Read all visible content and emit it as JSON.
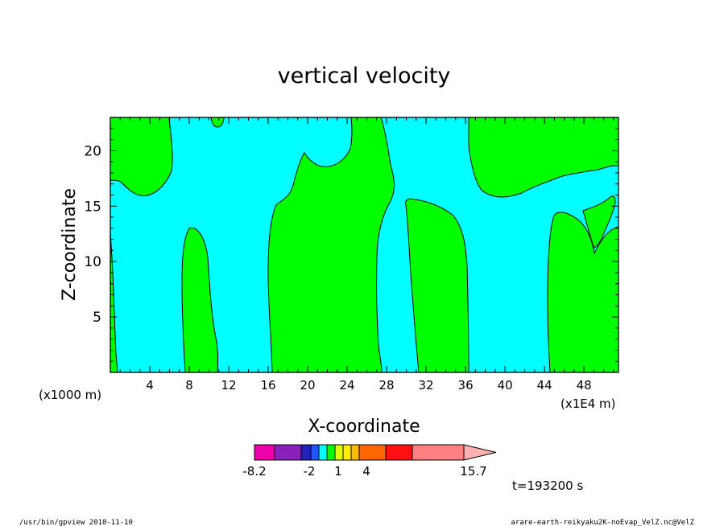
{
  "chart_data": {
    "type": "heatmap",
    "title": "vertical velocity",
    "xlabel": "X-coordinate",
    "ylabel": "Z-coordinate",
    "x_unit_note": "(x1000 m)",
    "x_scale_note": "(x1E4 m)",
    "xlim": [
      0,
      51.5
    ],
    "ylim": [
      0,
      23
    ],
    "x_ticks": [
      "4",
      "8",
      "12",
      "16",
      "20",
      "24",
      "28",
      "32",
      "36",
      "40",
      "44",
      "48"
    ],
    "y_ticks": [
      "5",
      "10",
      "15",
      "20"
    ],
    "regions": [
      {
        "level": "1 to 4",
        "color": "#00ff00",
        "x_extent": [
          0.0,
          1.0
        ]
      },
      {
        "level": "1 to 4",
        "color": "#00ff00",
        "x_extent": [
          7.5,
          10.8
        ]
      },
      {
        "level": "1 to 4",
        "color": "#00ff00",
        "x_extent": [
          16.3,
          27.5
        ]
      },
      {
        "level": "1 to 4",
        "color": "#00ff00",
        "x_extent": [
          29.8,
          36.0
        ]
      },
      {
        "level": "1 to 4",
        "color": "#00ff00",
        "x_extent": [
          36.0,
          51.5
        ]
      }
    ],
    "background_level": {
      "level": "-2 to 1",
      "color": "#00ffff"
    },
    "colorbar": {
      "labels": [
        "-8.2",
        "-2",
        "1",
        "4",
        "15.7"
      ],
      "colors": [
        "#ee00aa",
        "#8822bb",
        "#2222bb",
        "#2255ff",
        "#00ffff",
        "#00ff00",
        "#ddff00",
        "#ffee00",
        "#ffbb00",
        "#ff6600",
        "#ff1111",
        "#ff8080",
        "#ffb0b0"
      ]
    },
    "annotation": "t=193200 s"
  },
  "footer": {
    "left": "/usr/bin/gpview  2010-11-10",
    "right": "arare-earth-reikyaku2K-noEvap_VelZ.nc@VelZ"
  }
}
